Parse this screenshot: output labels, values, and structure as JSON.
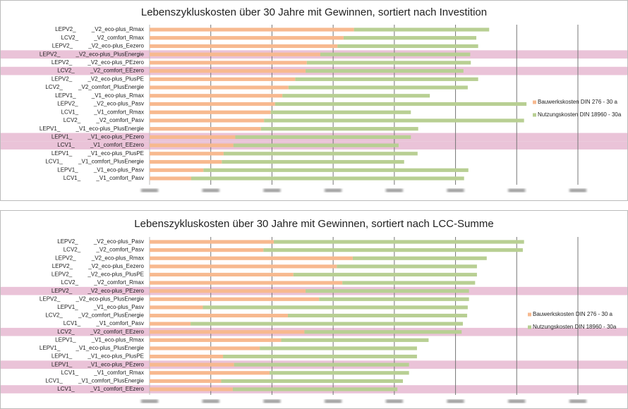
{
  "chart_data": [
    {
      "type": "bar",
      "orientation": "horizontal",
      "stacked": true,
      "title": "Lebenszykluskosten über 30 Jahre mit Gewinnen, sortiert nach Investition",
      "categories": [
        "LEPV2_          _V2_eco-plus_Rmax",
        "LCV2_          _V2_comfort_Rmax",
        "LEPV2_          _V2_eco-plus_Eezero",
        "LEPV2_          _V2_eco-plus_PlusEnergie",
        "LEPV2_          _V2_eco-plus_PEzero",
        "LCV2_          _V2_comfort_EEzero",
        "LEPV2_          _V2_eco-plus_PlusPE",
        "LCV2_          _V2_comfort_PlusEnergie",
        "LEPV1_          _V1_eco-plus_Rmax",
        "LEPV2_          _V2_eco-plus_Pasv",
        "LCV1_          _V1_comfort_Rmax",
        "LCV2_          _V2_comfort_Pasv",
        "LEPV1_          _V1_eco-plus_PlusEnergie",
        "LEPV1_          _V1_eco-plus_PEzero",
        "LCV1_          _V1_comfort_EEzero",
        "LEPV1_          _V1_eco-plus_PlusPE",
        "LCV1_          _V1_comfort_PlusEnergie",
        "LEPV1_          _V1_eco-plus_Pasv",
        "LCV1_          _V1_comfort_Pasv"
      ],
      "highlighted": [
        false,
        false,
        false,
        true,
        false,
        true,
        false,
        false,
        false,
        false,
        false,
        false,
        false,
        true,
        true,
        false,
        false,
        false,
        false
      ],
      "series": [
        {
          "name": "Bauwerkskosten DIN 276 - 30 a",
          "color": "#f7b98f",
          "values": [
            3.34,
            3.17,
            3.07,
            2.79,
            2.57,
            2.55,
            2.38,
            2.27,
            2.17,
            2.05,
            1.98,
            1.87,
            1.82,
            1.4,
            1.37,
            1.21,
            1.18,
            0.88,
            0.68
          ]
        },
        {
          "name": "Nutzungskosten DIN 18960 - 30a",
          "color": "#b8cf93",
          "values": [
            2.21,
            2.17,
            2.3,
            2.45,
            2.68,
            2.58,
            2.99,
            2.93,
            2.41,
            4.11,
            2.29,
            4.25,
            2.57,
            2.87,
            2.7,
            3.17,
            2.98,
            4.33,
            4.46
          ]
        }
      ],
      "xlim": [
        0,
        7
      ],
      "xticks": [
        0,
        1,
        2,
        3,
        4,
        5,
        6,
        7
      ],
      "grid": true,
      "legend": "right"
    },
    {
      "type": "bar",
      "orientation": "horizontal",
      "stacked": true,
      "title": "Lebenszykluskosten über 30 Jahre mit Gewinnen, sortiert nach LCC-Summe",
      "categories": [
        "LEPV2_          _V2_eco-plus_Pasv",
        "LCV2_          _V2_comfort_Pasv",
        "LEPV2_          _V2_eco-plus_Rmax",
        "LEPV2_          _V2_eco-plus_Eezero",
        "LEPV2_          _V2_eco-plus_PlusPE",
        "LCV2_          _V2_comfort_Rmax",
        "LEPV2_          _V2_eco-plus_PEzero",
        "LEPV2_          _V2_eco-plus_PlusEnergie",
        "LEPV1_          _V1_eco-plus_Pasv",
        "LCV2_          _V2_comfort_PlusEnergie",
        "LCV1_          _V1_comfort_Pasv",
        "LCV2_          _V2_comfort_EEzero",
        "LEPV1_          _V1_eco-plus_Rmax",
        "LEPV1_          _V1_eco-plus_PlusEnergie",
        "LEPV1_          _V1_eco-plus_PlusPE",
        "LEPV1_          _V1_eco-plus_PEzero",
        "LCV1_          _V1_comfort_Rmax",
        "LCV1_          _V1_comfort_PlusEnergie",
        "LCV1_          _V1_comfort_EEzero"
      ],
      "highlighted": [
        false,
        false,
        false,
        false,
        false,
        false,
        true,
        false,
        false,
        false,
        false,
        true,
        false,
        false,
        false,
        true,
        false,
        false,
        true
      ],
      "series": [
        {
          "name": "Bauwerkskosten DIN 276 - 30 a",
          "color": "#f7b98f",
          "values": [
            2.03,
            1.86,
            3.32,
            3.06,
            2.35,
            3.15,
            2.55,
            2.77,
            0.87,
            2.26,
            0.67,
            2.53,
            2.15,
            1.8,
            1.2,
            1.38,
            1.96,
            1.17,
            1.36
          ]
        },
        {
          "name": "Nutzungskosten DIN 18960 - 30a",
          "color": "#b8cf93",
          "values": [
            4.09,
            4.24,
            2.19,
            2.29,
            3.0,
            2.17,
            2.67,
            2.45,
            4.33,
            2.93,
            4.45,
            2.57,
            2.41,
            2.57,
            3.17,
            2.86,
            2.28,
            2.97,
            2.69
          ]
        }
      ],
      "xlim": [
        0,
        7
      ],
      "xticks": [
        0,
        1,
        2,
        3,
        4,
        5,
        6,
        7
      ],
      "grid": true,
      "legend": "right"
    }
  ]
}
